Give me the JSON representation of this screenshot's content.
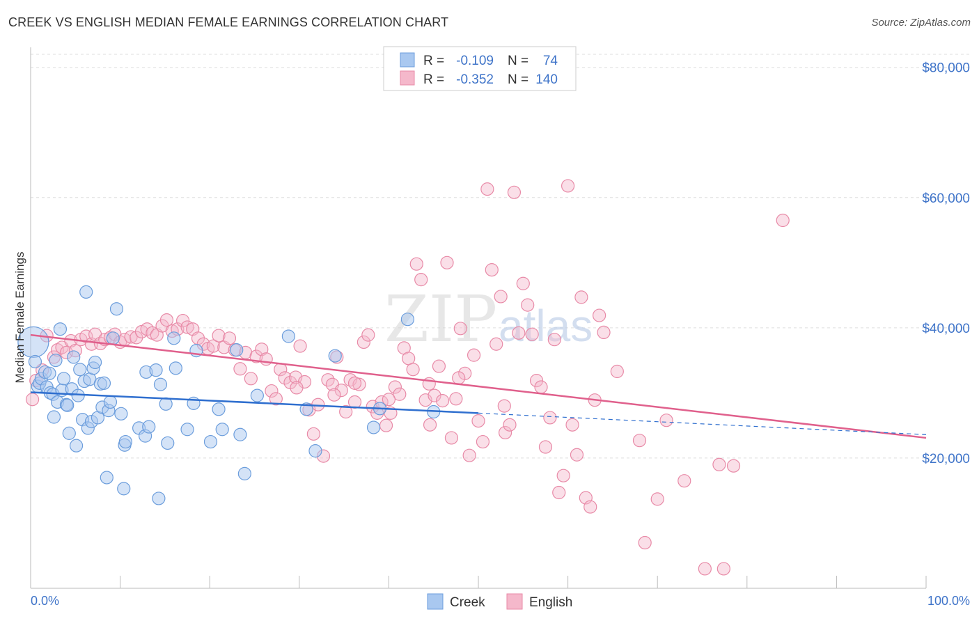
{
  "title": "CREEK VS ENGLISH MEDIAN FEMALE EARNINGS CORRELATION CHART",
  "source": "Source: ZipAtlas.com",
  "watermark": {
    "zip": "ZIP",
    "atlas": "atlas"
  },
  "legend_box": {
    "rows": [
      {
        "r_label": "R =",
        "r_value": "-0.109",
        "n_label": "N =",
        "n_value": "74",
        "color": "#a9c8f0"
      },
      {
        "r_label": "R =",
        "r_value": "-0.352",
        "n_label": "N =",
        "n_value": "140",
        "color": "#f5b8cb"
      }
    ]
  },
  "bottom_legend": {
    "creek": "Creek",
    "english": "English"
  },
  "colors": {
    "creek_fill": "#a9c8f0",
    "creek_stroke": "#6b9ddc",
    "creek_line": "#2f6fcf",
    "english_fill": "#f5b8cb",
    "english_stroke": "#e88aa7",
    "english_line": "#e0608c",
    "axis_text": "#3f74c9",
    "grid": "#dddddd"
  },
  "chart_data": {
    "type": "scatter",
    "title": "CREEK VS ENGLISH MEDIAN FEMALE EARNINGS CORRELATION CHART",
    "xlabel": "",
    "ylabel": "Median Female Earnings",
    "xlim": [
      0,
      100
    ],
    "ylim": [
      0,
      82000
    ],
    "x_tick_labels": [
      "0.0%",
      "100.0%"
    ],
    "y_ticks": [
      20000,
      40000,
      60000,
      80000
    ],
    "y_tick_labels": [
      "$20,000",
      "$40,000",
      "$60,000",
      "$80,000"
    ],
    "grid": true,
    "legend_position": "top-center",
    "series": [
      {
        "name": "Creek",
        "R": -0.109,
        "N": 74,
        "trend": {
          "x": [
            0,
            50
          ],
          "y": [
            30100,
            26900
          ],
          "dashed_to": [
            100,
            23600
          ]
        },
        "points": [
          [
            0.3,
            37800
          ],
          [
            0.5,
            34800
          ],
          [
            0.8,
            31000
          ],
          [
            1.0,
            31500
          ],
          [
            1.2,
            32200
          ],
          [
            1.6,
            33200
          ],
          [
            1.8,
            30900
          ],
          [
            2.1,
            33000
          ],
          [
            2.2,
            30000
          ],
          [
            2.5,
            29800
          ],
          [
            2.6,
            26300
          ],
          [
            2.8,
            35000
          ],
          [
            3.0,
            28600
          ],
          [
            3.3,
            39800
          ],
          [
            3.5,
            30400
          ],
          [
            3.7,
            32200
          ],
          [
            4.0,
            28200
          ],
          [
            4.1,
            28100
          ],
          [
            4.3,
            23800
          ],
          [
            4.6,
            30600
          ],
          [
            4.8,
            35500
          ],
          [
            5.1,
            21900
          ],
          [
            5.3,
            29600
          ],
          [
            5.5,
            33600
          ],
          [
            5.8,
            25900
          ],
          [
            6.0,
            31800
          ],
          [
            6.2,
            45500
          ],
          [
            6.4,
            24600
          ],
          [
            6.6,
            32100
          ],
          [
            6.8,
            25600
          ],
          [
            7.0,
            33800
          ],
          [
            7.2,
            34700
          ],
          [
            7.5,
            26200
          ],
          [
            7.8,
            31400
          ],
          [
            8.0,
            27800
          ],
          [
            8.2,
            31500
          ],
          [
            8.5,
            17000
          ],
          [
            8.7,
            27300
          ],
          [
            8.9,
            28600
          ],
          [
            9.2,
            38400
          ],
          [
            9.6,
            42900
          ],
          [
            10.1,
            26800
          ],
          [
            10.4,
            15300
          ],
          [
            10.5,
            22000
          ],
          [
            10.6,
            22500
          ],
          [
            12.1,
            24600
          ],
          [
            12.8,
            23400
          ],
          [
            12.9,
            33200
          ],
          [
            13.2,
            24800
          ],
          [
            14.0,
            33500
          ],
          [
            14.3,
            13800
          ],
          [
            14.5,
            31300
          ],
          [
            15.1,
            28300
          ],
          [
            15.3,
            22300
          ],
          [
            16.0,
            38400
          ],
          [
            16.2,
            33800
          ],
          [
            17.5,
            24400
          ],
          [
            18.2,
            28400
          ],
          [
            18.5,
            36500
          ],
          [
            20.1,
            22500
          ],
          [
            21.0,
            27500
          ],
          [
            21.4,
            24400
          ],
          [
            23.0,
            36600
          ],
          [
            23.4,
            23600
          ],
          [
            23.9,
            17600
          ],
          [
            25.3,
            29600
          ],
          [
            28.8,
            38700
          ],
          [
            30.8,
            27500
          ],
          [
            31.8,
            21100
          ],
          [
            34.0,
            35700
          ],
          [
            38.3,
            24700
          ],
          [
            39.0,
            27600
          ],
          [
            42.1,
            41300
          ],
          [
            45.0,
            27100
          ]
        ]
      },
      {
        "name": "English",
        "R": -0.352,
        "N": 140,
        "trend": {
          "x": [
            0,
            100
          ],
          "y": [
            38900,
            23100
          ]
        },
        "points": [
          [
            0.2,
            29000
          ],
          [
            0.6,
            31900
          ],
          [
            1.3,
            33500
          ],
          [
            1.8,
            38800
          ],
          [
            2.6,
            35500
          ],
          [
            3.0,
            36600
          ],
          [
            3.5,
            37000
          ],
          [
            4.0,
            36200
          ],
          [
            4.5,
            38000
          ],
          [
            5.0,
            36500
          ],
          [
            5.6,
            38200
          ],
          [
            6.2,
            38700
          ],
          [
            6.8,
            37500
          ],
          [
            7.2,
            39000
          ],
          [
            7.8,
            37600
          ],
          [
            8.3,
            38200
          ],
          [
            8.9,
            38500
          ],
          [
            9.4,
            39000
          ],
          [
            10.0,
            37800
          ],
          [
            10.5,
            38200
          ],
          [
            11.2,
            38600
          ],
          [
            11.8,
            38500
          ],
          [
            12.4,
            39400
          ],
          [
            13.0,
            39800
          ],
          [
            13.6,
            39200
          ],
          [
            14.1,
            38900
          ],
          [
            14.7,
            40300
          ],
          [
            15.2,
            41200
          ],
          [
            15.8,
            39500
          ],
          [
            16.4,
            39800
          ],
          [
            17.0,
            41100
          ],
          [
            17.5,
            40100
          ],
          [
            18.1,
            39800
          ],
          [
            18.7,
            38400
          ],
          [
            19.3,
            37500
          ],
          [
            19.8,
            36800
          ],
          [
            20.4,
            37200
          ],
          [
            21.0,
            38800
          ],
          [
            21.6,
            37000
          ],
          [
            22.2,
            38400
          ],
          [
            22.8,
            36600
          ],
          [
            23.4,
            33700
          ],
          [
            24.0,
            36200
          ],
          [
            24.6,
            32200
          ],
          [
            25.2,
            35600
          ],
          [
            25.8,
            36700
          ],
          [
            26.3,
            35200
          ],
          [
            26.9,
            30300
          ],
          [
            27.4,
            29100
          ],
          [
            27.9,
            33600
          ],
          [
            28.4,
            32300
          ],
          [
            29.0,
            31600
          ],
          [
            29.6,
            32400
          ],
          [
            30.1,
            37200
          ],
          [
            30.6,
            31700
          ],
          [
            31.1,
            27400
          ],
          [
            31.6,
            23700
          ],
          [
            32.1,
            28200
          ],
          [
            32.7,
            20300
          ],
          [
            33.2,
            32000
          ],
          [
            33.7,
            31300
          ],
          [
            34.2,
            35500
          ],
          [
            34.7,
            30400
          ],
          [
            35.2,
            27100
          ],
          [
            35.7,
            32000
          ],
          [
            36.2,
            28600
          ],
          [
            36.7,
            31300
          ],
          [
            37.2,
            37800
          ],
          [
            37.7,
            38900
          ],
          [
            38.2,
            27900
          ],
          [
            38.7,
            26900
          ],
          [
            39.2,
            28600
          ],
          [
            39.7,
            25000
          ],
          [
            40.2,
            26900
          ],
          [
            40.7,
            30900
          ],
          [
            41.2,
            29800
          ],
          [
            41.7,
            36900
          ],
          [
            42.2,
            35300
          ],
          [
            42.7,
            33600
          ],
          [
            43.1,
            49800
          ],
          [
            43.6,
            47400
          ],
          [
            44.1,
            28900
          ],
          [
            44.6,
            25100
          ],
          [
            45.1,
            29600
          ],
          [
            45.6,
            34100
          ],
          [
            46.0,
            28800
          ],
          [
            46.5,
            50000
          ],
          [
            47.0,
            23100
          ],
          [
            47.5,
            29100
          ],
          [
            48.0,
            39900
          ],
          [
            48.5,
            33000
          ],
          [
            49.0,
            20400
          ],
          [
            49.5,
            35800
          ],
          [
            50.0,
            25700
          ],
          [
            50.5,
            22500
          ],
          [
            51.0,
            61300
          ],
          [
            51.5,
            48900
          ],
          [
            52.0,
            37500
          ],
          [
            52.5,
            44800
          ],
          [
            53.0,
            23900
          ],
          [
            53.5,
            25100
          ],
          [
            54.0,
            60800
          ],
          [
            54.5,
            39200
          ],
          [
            55.0,
            46800
          ],
          [
            55.5,
            43500
          ],
          [
            56.0,
            39000
          ],
          [
            56.5,
            31900
          ],
          [
            57.0,
            30900
          ],
          [
            57.5,
            21700
          ],
          [
            58.0,
            26200
          ],
          [
            58.5,
            38200
          ],
          [
            59.0,
            14700
          ],
          [
            59.5,
            17300
          ],
          [
            60.0,
            61800
          ],
          [
            60.5,
            25100
          ],
          [
            61.0,
            20500
          ],
          [
            61.5,
            44700
          ],
          [
            62.0,
            13900
          ],
          [
            62.5,
            12500
          ],
          [
            63.0,
            28900
          ],
          [
            63.5,
            41900
          ],
          [
            64.0,
            39300
          ],
          [
            65.5,
            33300
          ],
          [
            68.0,
            22700
          ],
          [
            68.6,
            7000
          ],
          [
            70.0,
            13700
          ],
          [
            71.0,
            25800
          ],
          [
            73.0,
            16500
          ],
          [
            75.3,
            3000
          ],
          [
            76.9,
            19000
          ],
          [
            77.4,
            3000
          ],
          [
            78.5,
            18800
          ],
          [
            84.0,
            56500
          ],
          [
            29.7,
            30800
          ],
          [
            33.9,
            29700
          ],
          [
            40.0,
            29000
          ],
          [
            44.5,
            31400
          ],
          [
            52.9,
            28000
          ],
          [
            36.2,
            31500
          ],
          [
            47.8,
            32300
          ]
        ]
      }
    ]
  }
}
